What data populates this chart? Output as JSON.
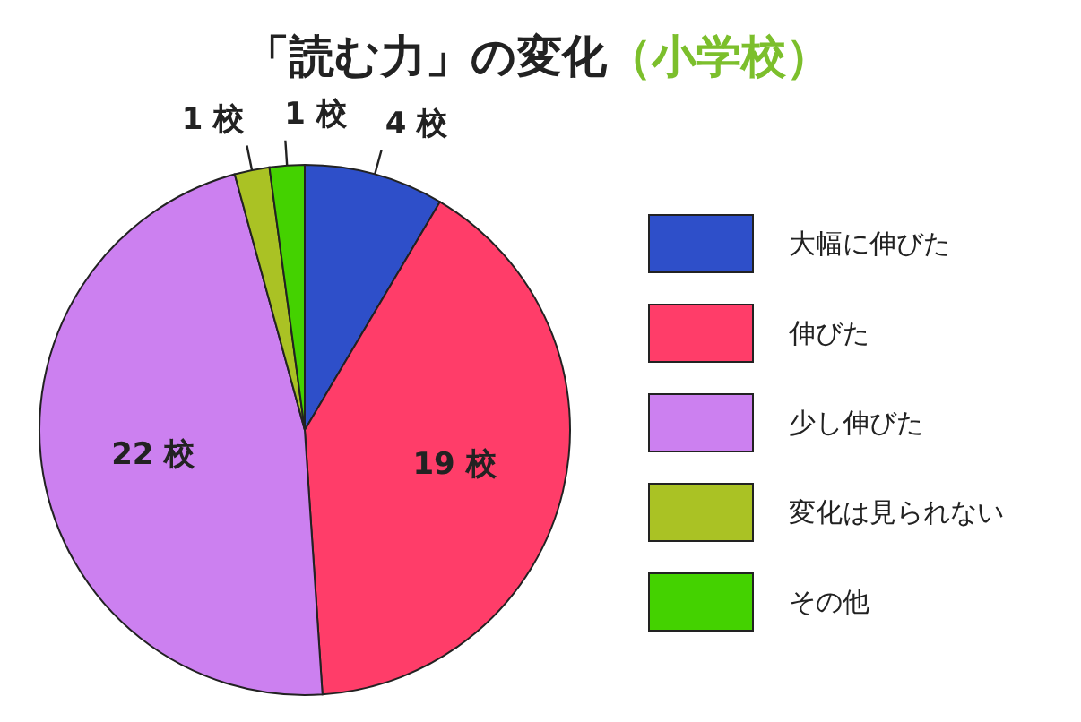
{
  "chart_data": {
    "type": "pie",
    "title": "「読む力」の変化",
    "subtitle": "（小学校）",
    "categories": [
      "大幅に伸びた",
      "伸びた",
      "少し伸びた",
      "変化は見られない",
      "その他"
    ],
    "values": [
      4,
      19,
      22,
      1,
      1
    ],
    "value_labels": [
      "4 校",
      "19 校",
      "22 校",
      "1 校",
      "1 校"
    ],
    "colors": [
      "#2e4fc9",
      "#ff3d69",
      "#cc80f0",
      "#aac224",
      "#44d200"
    ],
    "legend": "right"
  }
}
